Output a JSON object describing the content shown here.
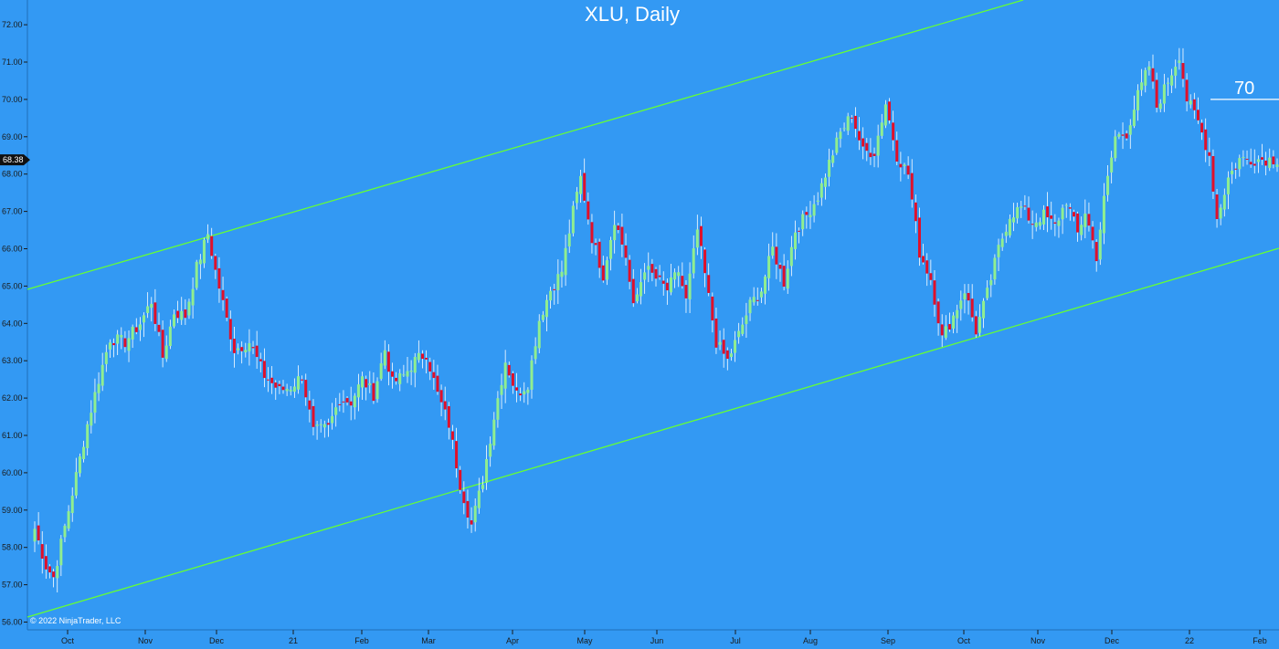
{
  "chart_data": {
    "type": "candlestick",
    "title": "XLU, Daily",
    "copyright": "© 2022 NinjaTrader, LLC",
    "ylim": [
      56.0,
      72.5
    ],
    "y_ticks": [
      "56.00",
      "57.00",
      "58.00",
      "59.00",
      "60.00",
      "61.00",
      "62.00",
      "63.00",
      "64.00",
      "65.00",
      "66.00",
      "67.00",
      "68.00",
      "69.00",
      "70.00",
      "71.00",
      "72.00"
    ],
    "x_ticks": [
      "Oct",
      "Nov",
      "Dec",
      "21",
      "Feb",
      "Mar",
      "Apr",
      "May",
      "Jun",
      "Jul",
      "Aug",
      "Sep",
      "Oct",
      "Nov",
      "Dec",
      "22",
      "Feb"
    ],
    "last_price": "68.38",
    "annotation_level": 70.0,
    "annotation_label": "70",
    "colors": {
      "background": "#3399f3",
      "up": "#90ee90",
      "down": "#e0102a",
      "wick": "#ffffff",
      "channel": "#66ff33",
      "text": "#1a1a1a"
    },
    "channel_lines": [
      {
        "name": "upper",
        "start": [
          "Oct 2020",
          64.9
        ],
        "end": [
          "Sep 2021",
          72.5
        ]
      },
      {
        "name": "lower",
        "start": [
          "Oct 2020",
          56.2
        ],
        "end": [
          "Feb 2022",
          66.0
        ]
      }
    ],
    "close_path": [
      [
        0,
        58.5
      ],
      [
        3,
        57.5
      ],
      [
        5,
        57.2
      ],
      [
        9,
        59.0
      ],
      [
        14,
        61.3
      ],
      [
        17,
        62.5
      ],
      [
        20,
        63.6
      ],
      [
        24,
        63.5
      ],
      [
        28,
        64.0
      ],
      [
        31,
        64.6
      ],
      [
        34,
        63.1
      ],
      [
        37,
        64.3
      ],
      [
        40,
        64.2
      ],
      [
        43,
        65.5
      ],
      [
        46,
        66.4
      ],
      [
        48,
        65.4
      ],
      [
        51,
        64.1
      ],
      [
        53,
        63.3
      ],
      [
        57,
        63.5
      ],
      [
        61,
        62.6
      ],
      [
        65,
        62.2
      ],
      [
        68,
        62.3
      ],
      [
        71,
        62.6
      ],
      [
        74,
        61.1
      ],
      [
        78,
        61.2
      ],
      [
        81,
        62.0
      ],
      [
        84,
        61.9
      ],
      [
        87,
        62.5
      ],
      [
        90,
        62.1
      ],
      [
        93,
        63.3
      ],
      [
        95,
        62.4
      ],
      [
        98,
        62.6
      ],
      [
        101,
        63.0
      ],
      [
        104,
        63.2
      ],
      [
        107,
        62.1
      ],
      [
        110,
        61.3
      ],
      [
        113,
        59.7
      ],
      [
        116,
        58.6
      ],
      [
        119,
        59.8
      ],
      [
        122,
        61.5
      ],
      [
        125,
        63.0
      ],
      [
        128,
        62.1
      ],
      [
        131,
        62.4
      ],
      [
        134,
        64.1
      ],
      [
        137,
        64.9
      ],
      [
        140,
        65.4
      ],
      [
        143,
        67.0
      ],
      [
        145,
        67.9
      ],
      [
        148,
        66.3
      ],
      [
        151,
        65.3
      ],
      [
        154,
        66.8
      ],
      [
        157,
        65.8
      ],
      [
        159,
        64.4
      ],
      [
        162,
        65.5
      ],
      [
        165,
        65.2
      ],
      [
        168,
        64.9
      ],
      [
        171,
        65.4
      ],
      [
        173,
        64.6
      ],
      [
        176,
        66.5
      ],
      [
        178,
        65.3
      ],
      [
        181,
        63.5
      ],
      [
        184,
        63.0
      ],
      [
        187,
        63.7
      ],
      [
        190,
        64.5
      ],
      [
        193,
        64.9
      ],
      [
        196,
        66.0
      ],
      [
        199,
        65.1
      ],
      [
        202,
        66.5
      ],
      [
        205,
        66.9
      ],
      [
        208,
        67.4
      ],
      [
        211,
        68.3
      ],
      [
        214,
        69.1
      ],
      [
        217,
        69.6
      ],
      [
        220,
        68.6
      ],
      [
        223,
        68.6
      ],
      [
        226,
        69.9
      ],
      [
        229,
        68.5
      ],
      [
        232,
        68.0
      ],
      [
        235,
        65.9
      ],
      [
        238,
        65.2
      ],
      [
        241,
        63.6
      ],
      [
        244,
        64.2
      ],
      [
        247,
        64.9
      ],
      [
        250,
        63.8
      ],
      [
        253,
        64.8
      ],
      [
        256,
        66.0
      ],
      [
        259,
        66.9
      ],
      [
        262,
        67.1
      ],
      [
        265,
        66.7
      ],
      [
        268,
        66.9
      ],
      [
        271,
        66.6
      ],
      [
        274,
        67.3
      ],
      [
        277,
        66.4
      ],
      [
        279,
        67.0
      ],
      [
        282,
        65.8
      ],
      [
        284,
        67.3
      ],
      [
        287,
        69.0
      ],
      [
        290,
        69.1
      ],
      [
        293,
        70.1
      ],
      [
        296,
        70.9
      ],
      [
        298,
        69.8
      ],
      [
        301,
        70.5
      ],
      [
        304,
        71.2
      ],
      [
        306,
        70.0
      ],
      [
        309,
        69.4
      ],
      [
        312,
        68.5
      ],
      [
        314,
        66.8
      ],
      [
        317,
        67.9
      ],
      [
        320,
        68.4
      ]
    ]
  }
}
